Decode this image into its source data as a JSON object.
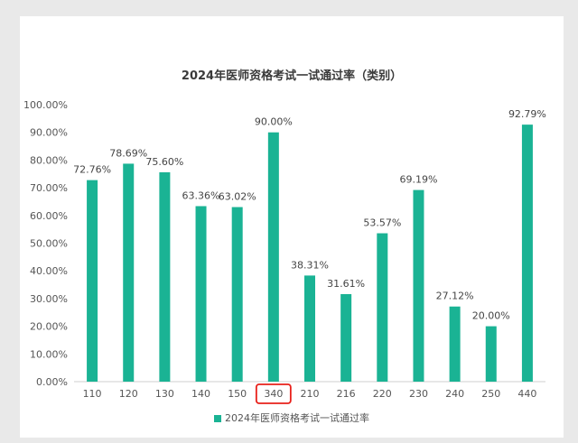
{
  "colors": {
    "bar": "#1ab394",
    "highlight": "#e8201a"
  },
  "highlight_category": "340",
  "chart_data": {
    "type": "bar",
    "title": "2024年医师资格考试一试通过率（类别）",
    "categories": [
      "110",
      "120",
      "130",
      "140",
      "150",
      "340",
      "210",
      "216",
      "220",
      "230",
      "240",
      "250",
      "440"
    ],
    "series": [
      {
        "name": "2024年医师资格考试一试通过率",
        "values": [
          72.76,
          78.69,
          75.6,
          63.36,
          63.02,
          90.0,
          38.31,
          31.61,
          53.57,
          69.19,
          27.12,
          20.0,
          92.79
        ]
      }
    ],
    "data_labels": [
      "72.76%",
      "78.69%",
      "75.60%",
      "63.36%",
      "63.02%",
      "90.00%",
      "38.31%",
      "31.61%",
      "53.57%",
      "69.19%",
      "27.12%",
      "20.00%",
      "92.79%"
    ],
    "yticks": [
      "0.00%",
      "10.00%",
      "20.00%",
      "30.00%",
      "40.00%",
      "50.00%",
      "60.00%",
      "70.00%",
      "80.00%",
      "90.00%",
      "100.00%"
    ],
    "ylim": [
      0,
      100
    ],
    "grid": false,
    "legend_position": "bottom"
  }
}
